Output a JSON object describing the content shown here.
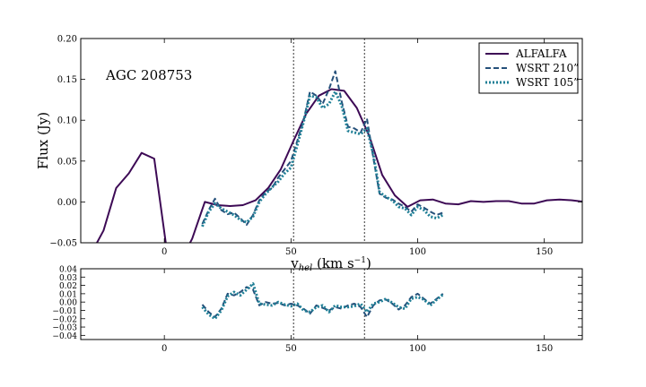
{
  "chart_data": [
    {
      "type": "line",
      "annotation": "AGC 208753",
      "xlabel": "v",
      "xlabel_sub": "hel",
      "xlabel_unit_open": " (km s",
      "xlabel_unit_sup": "−1",
      "xlabel_unit_close": ")",
      "ylabel": "Flux (Jy)",
      "xlim": [
        -33,
        165
      ],
      "ylim": [
        -0.05,
        0.2
      ],
      "xticks": [
        0,
        50,
        100,
        150
      ],
      "yticks": [
        -0.05,
        0.0,
        0.05,
        0.1,
        0.15,
        0.2
      ],
      "ytick_labels": [
        "−0.05",
        "0.00",
        "0.05",
        "0.10",
        "0.15",
        "0.20"
      ],
      "vlines": [
        51,
        79
      ],
      "legend_position": "top-right",
      "series": [
        {
          "name": "ALFALFA",
          "color": "#3d0a55",
          "style": "solid",
          "x": [
            -28,
            -24,
            -19,
            -14,
            -9,
            -4,
            1,
            6,
            11,
            16,
            21,
            26,
            31,
            36,
            41,
            46,
            51,
            56,
            61,
            66,
            71,
            76,
            81,
            86,
            91,
            96,
            101,
            106,
            111,
            116,
            121,
            126,
            131,
            136,
            141,
            146,
            151,
            156,
            161,
            166
          ],
          "values": [
            -0.058,
            -0.035,
            0.017,
            0.035,
            0.06,
            0.053,
            -0.06,
            -0.075,
            -0.045,
            0.0,
            -0.004,
            -0.005,
            -0.004,
            0.002,
            0.017,
            0.04,
            0.075,
            0.108,
            0.13,
            0.138,
            0.136,
            0.115,
            0.08,
            0.033,
            0.008,
            -0.006,
            0.002,
            0.003,
            -0.002,
            -0.003,
            0.001,
            0.0,
            0.001,
            0.001,
            -0.002,
            -0.002,
            0.002,
            0.003,
            0.002,
            0.0
          ]
        },
        {
          "name": "WSRT 210”",
          "color": "#25507a",
          "style": "dashed",
          "x": [
            15,
            17.5,
            20,
            22.5,
            25,
            27.5,
            30,
            32.5,
            35,
            37.5,
            40,
            42.5,
            45,
            47.5,
            50,
            52.5,
            55,
            57.5,
            60,
            62.5,
            65,
            67.5,
            70,
            72.5,
            75,
            77.5,
            80,
            82.5,
            85,
            87.5,
            90,
            92.5,
            95,
            97.5,
            100,
            102.5,
            105,
            107.5,
            110
          ],
          "values": [
            -0.027,
            -0.01,
            0.004,
            -0.01,
            -0.015,
            -0.013,
            -0.02,
            -0.028,
            -0.016,
            0.002,
            0.012,
            0.017,
            0.03,
            0.04,
            0.05,
            0.075,
            0.1,
            0.135,
            0.13,
            0.12,
            0.138,
            0.16,
            0.123,
            0.092,
            0.09,
            0.085,
            0.102,
            0.054,
            0.01,
            0.005,
            0.003,
            -0.002,
            -0.006,
            -0.012,
            -0.003,
            -0.007,
            -0.012,
            -0.016,
            -0.013
          ]
        },
        {
          "name": "WSRT 105”",
          "color": "#1f7f96",
          "style": "dotted",
          "x": [
            15,
            17.5,
            20,
            22.5,
            25,
            27.5,
            30,
            32.5,
            35,
            37.5,
            40,
            42.5,
            45,
            47.5,
            50,
            52.5,
            55,
            57.5,
            60,
            62.5,
            65,
            67.5,
            70,
            72.5,
            75,
            77.5,
            80,
            82.5,
            85,
            87.5,
            90,
            92.5,
            95,
            97.5,
            100,
            102.5,
            105,
            107.5,
            110
          ],
          "values": [
            -0.03,
            -0.012,
            -0.002,
            -0.008,
            -0.012,
            -0.016,
            -0.022,
            -0.025,
            -0.018,
            0.0,
            0.01,
            0.018,
            0.025,
            0.035,
            0.042,
            0.07,
            0.098,
            0.13,
            0.128,
            0.115,
            0.12,
            0.135,
            0.118,
            0.087,
            0.085,
            0.083,
            0.09,
            0.058,
            0.012,
            0.006,
            0.002,
            -0.006,
            -0.008,
            -0.016,
            -0.006,
            -0.01,
            -0.018,
            -0.02,
            -0.016
          ]
        }
      ]
    },
    {
      "type": "line",
      "role": "residual",
      "xlim": [
        -33,
        165
      ],
      "ylim": [
        -0.045,
        0.04
      ],
      "xticks": [
        0,
        50,
        100,
        150
      ],
      "yticks": [
        -0.04,
        -0.03,
        -0.02,
        -0.01,
        0.0,
        0.01,
        0.02,
        0.03,
        0.04
      ],
      "ytick_labels": [
        "−0.04",
        "−0.03",
        "−0.02",
        "−0.01",
        "0.00",
        "0.01",
        "0.02",
        "0.03",
        "0.04"
      ],
      "vlines": [
        51,
        79
      ],
      "series": [
        {
          "color": "#25507a",
          "style": "dashed",
          "x": [
            15,
            17.5,
            20,
            22.5,
            25,
            27.5,
            30,
            32.5,
            35,
            37.5,
            40,
            42.5,
            45,
            47.5,
            50,
            52.5,
            55,
            57.5,
            60,
            62.5,
            65,
            67.5,
            70,
            72.5,
            75,
            77.5,
            80,
            82.5,
            85,
            87.5,
            90,
            92.5,
            95,
            97.5,
            100,
            102.5,
            105,
            107.5,
            110
          ],
          "values": [
            -0.003,
            -0.012,
            -0.018,
            -0.008,
            0.01,
            0.008,
            0.012,
            0.018,
            0.015,
            -0.004,
            0.0,
            -0.002,
            -0.001,
            -0.004,
            -0.002,
            -0.004,
            -0.008,
            -0.014,
            -0.004,
            -0.007,
            -0.01,
            -0.006,
            -0.008,
            -0.004,
            -0.002,
            -0.006,
            -0.018,
            -0.004,
            0.002,
            0.003,
            -0.002,
            -0.009,
            -0.004,
            0.006,
            0.01,
            0.004,
            -0.002,
            0.004,
            0.01
          ]
        },
        {
          "color": "#1f7f96",
          "style": "dotted",
          "x": [
            15,
            17.5,
            20,
            22.5,
            25,
            27.5,
            30,
            32.5,
            35,
            37.5,
            40,
            42.5,
            45,
            47.5,
            50,
            52.5,
            55,
            57.5,
            60,
            62.5,
            65,
            67.5,
            70,
            72.5,
            75,
            77.5,
            80,
            82.5,
            85,
            87.5,
            90,
            92.5,
            95,
            97.5,
            100,
            102.5,
            105,
            107.5,
            110
          ],
          "values": [
            -0.006,
            -0.015,
            -0.02,
            -0.01,
            0.007,
            0.012,
            0.008,
            0.015,
            0.022,
            -0.002,
            -0.003,
            -0.004,
            0.0,
            -0.003,
            -0.005,
            -0.002,
            -0.01,
            -0.012,
            -0.006,
            -0.004,
            -0.012,
            -0.004,
            -0.006,
            -0.006,
            -0.005,
            -0.002,
            -0.012,
            -0.002,
            0.0,
            0.004,
            -0.001,
            -0.006,
            -0.008,
            0.004,
            0.006,
            0.003,
            -0.004,
            0.003,
            0.009
          ]
        }
      ]
    }
  ]
}
